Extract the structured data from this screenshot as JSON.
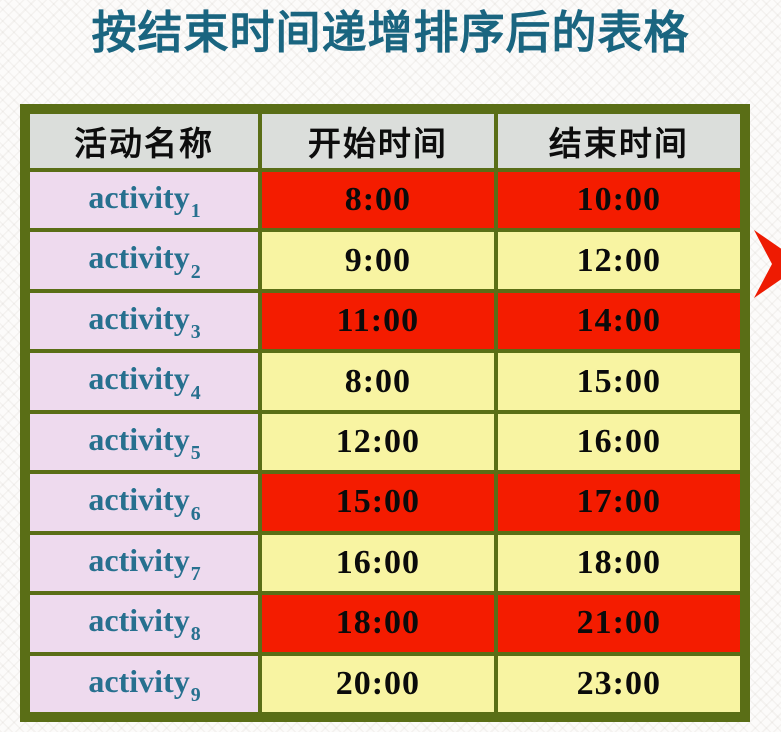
{
  "page": {
    "title": "按结束时间递增排序后的表格"
  },
  "table": {
    "headers": [
      {
        "label": "活动名称"
      },
      {
        "label": "开始时间"
      },
      {
        "label": "结束时间"
      }
    ],
    "rows": [
      {
        "name": "activity",
        "index": "1",
        "start": "8:00",
        "end": "10:00",
        "time_highlight": "red"
      },
      {
        "name": "activity",
        "index": "2",
        "start": "9:00",
        "end": "12:00",
        "time_highlight": "yellow"
      },
      {
        "name": "activity",
        "index": "3",
        "start": "11:00",
        "end": "14:00",
        "time_highlight": "red"
      },
      {
        "name": "activity",
        "index": "4",
        "start": "8:00",
        "end": "15:00",
        "time_highlight": "yellow"
      },
      {
        "name": "activity",
        "index": "5",
        "start": "12:00",
        "end": "16:00",
        "time_highlight": "yellow"
      },
      {
        "name": "activity",
        "index": "6",
        "start": "15:00",
        "end": "17:00",
        "time_highlight": "red"
      },
      {
        "name": "activity",
        "index": "7",
        "start": "16:00",
        "end": "18:00",
        "time_highlight": "yellow"
      },
      {
        "name": "activity",
        "index": "8",
        "start": "18:00",
        "end": "21:00",
        "time_highlight": "red"
      },
      {
        "name": "activity",
        "index": "9",
        "start": "20:00",
        "end": "23:00",
        "time_highlight": "yellow"
      }
    ]
  },
  "icons": {
    "marker": "red-star-icon"
  },
  "colors": {
    "title": "#1a6580",
    "activity_text": "#27708f",
    "red_cell": "#f41c00",
    "yellow_cell": "#f8f4a2",
    "name_cell": "#eedaee",
    "header_cell": "#dbdedb",
    "border": "#5a6e16",
    "marker": "#ee1b02"
  }
}
